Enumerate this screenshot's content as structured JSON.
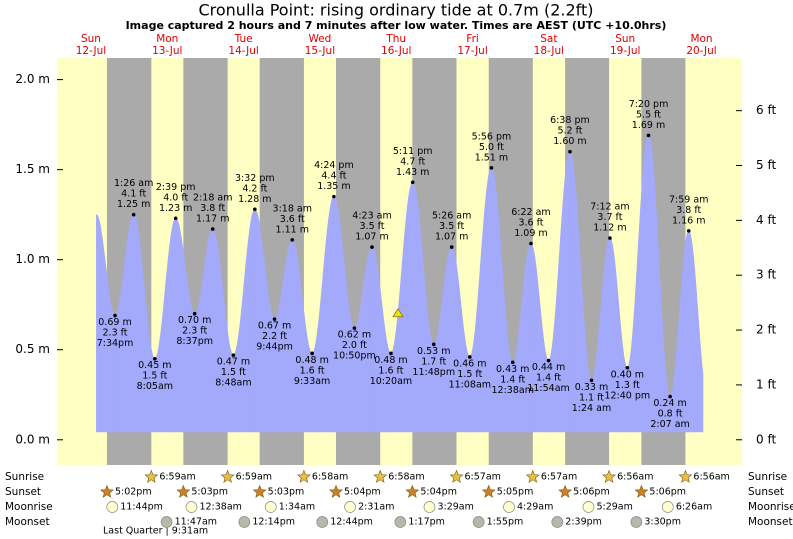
{
  "chart_data": {
    "type": "tide",
    "title": "Cronulla Point: rising  ordinary tide at 0.7m (2.2ft)",
    "subtitle": "Image captured 2 hours and 7 minutes after low water. Times are AEST (UTC +10.0hrs)",
    "current_height_m": 0.7,
    "weekdays": [
      "Sun",
      "Mon",
      "Tue",
      "Wed",
      "Thu",
      "Fri",
      "Sat",
      "Sun",
      "Mon"
    ],
    "categories": [
      "12-Jul",
      "13-Jul",
      "14-Jul",
      "15-Jul",
      "16-Jul",
      "17-Jul",
      "18-Jul",
      "19-Jul",
      "20-Jul"
    ],
    "ylim": [
      -0.14,
      2.12
    ],
    "yticks": [
      {
        "value": 0,
        "label": "0.0 m"
      },
      {
        "value": 0.5,
        "label": "0.5 m"
      },
      {
        "value": 1,
        "label": "1.0 m"
      },
      {
        "value": 1.5,
        "label": "1.5 m"
      },
      {
        "value": 2,
        "label": "2.0 m"
      }
    ],
    "y2lim": [
      -0.46,
      6.96
    ],
    "y2ticks": [
      {
        "value": 0,
        "label": "0 ft"
      },
      {
        "value": 1,
        "label": "1 ft"
      },
      {
        "value": 2,
        "label": "2 ft"
      },
      {
        "value": 3,
        "label": "3 ft"
      },
      {
        "value": 4,
        "label": "4 ft"
      },
      {
        "value": 5,
        "label": "5 ft"
      },
      {
        "value": 6,
        "label": "6 ft"
      }
    ],
    "extremes": {
      "times": [
        "7:34pm",
        "1:26 am",
        "8:05am",
        "2:39 pm",
        "8:37pm",
        "2:18 am",
        "8:48am",
        "3:32 pm",
        "9:44pm",
        "3:18 am",
        "9:33am",
        "4:24 pm",
        "10:50pm",
        "4:23 am",
        "10:20am",
        "5:11 pm",
        "11:48pm",
        "5:26 am",
        "11:08am",
        "5:56 pm",
        "12:38am",
        "6:22 am",
        "11:54am",
        "6:38 pm",
        "1:24 am",
        "7:12 am",
        "12:40 pm",
        "7:20 pm",
        "2:07 am",
        "7:59 am"
      ],
      "values": [
        0.69,
        1.25,
        0.45,
        1.23,
        0.7,
        1.17,
        0.47,
        1.28,
        0.67,
        1.11,
        0.48,
        1.35,
        0.62,
        1.07,
        0.48,
        1.43,
        0.53,
        1.07,
        0.46,
        1.51,
        0.43,
        1.09,
        0.44,
        1.6,
        0.33,
        1.12,
        0.4,
        1.69,
        0.24,
        1.16
      ],
      "value_labels": [
        "0.69 m",
        "1.25 m",
        "0.45 m",
        "1.23 m",
        "0.70 m",
        "1.17 m",
        "0.47 m",
        "1.28 m",
        "0.67 m",
        "1.11 m",
        "0.48 m",
        "1.35 m",
        "0.62 m",
        "1.07 m",
        "0.48 m",
        "1.43 m",
        "0.53 m",
        "1.07 m",
        "0.46 m",
        "1.51 m",
        "0.43 m",
        "1.09 m",
        "0.44 m",
        "1.60 m",
        "0.33 m",
        "1.12 m",
        "0.40 m",
        "1.69 m",
        "0.24 m",
        "1.16 m"
      ],
      "values_ft": [
        2.3,
        4.1,
        1.5,
        4.0,
        2.3,
        3.8,
        1.5,
        4.2,
        2.2,
        3.6,
        1.6,
        4.4,
        2.0,
        3.5,
        1.6,
        4.7,
        1.7,
        3.5,
        1.5,
        5.0,
        1.4,
        3.6,
        1.4,
        5.2,
        1.1,
        3.7,
        1.3,
        5.5,
        0.8,
        3.8
      ],
      "value_labels_ft": [
        "2.3 ft",
        "4.1 ft",
        "1.5 ft",
        "4.0 ft",
        "2.3 ft",
        "3.8 ft",
        "1.5 ft",
        "4.2 ft",
        "2.2 ft",
        "3.6 ft",
        "1.6 ft",
        "4.4 ft",
        "2.0 ft",
        "3.5 ft",
        "1.6 ft",
        "4.7 ft",
        "1.7 ft",
        "3.5 ft",
        "1.5 ft",
        "5.0 ft",
        "1.4 ft",
        "3.6 ft",
        "1.4 ft",
        "5.2 ft",
        "1.1 ft",
        "3.7 ft",
        "1.3 ft",
        "5.5 ft",
        "0.8 ft",
        "3.8 ft"
      ]
    },
    "rows": [
      {
        "name": "Sunrise",
        "times": [
          null,
          "6:59am",
          "6:59am",
          "6:58am",
          "6:58am",
          "6:57am",
          "6:57am",
          "6:56am",
          "6:56am"
        ]
      },
      {
        "name": "Sunset",
        "times": [
          "5:02pm",
          "5:03pm",
          "5:03pm",
          "5:04pm",
          "5:04pm",
          "5:05pm",
          "5:06pm",
          "5:06pm",
          null
        ]
      },
      {
        "name": "Moonrise",
        "times": [
          "11:44pm",
          null,
          "12:38am",
          "1:34am",
          "2:31am",
          "3:29am",
          "4:29am",
          "5:29am",
          "6:26am"
        ]
      },
      {
        "name": "Moonset",
        "times": [
          null,
          "11:47am",
          "12:14pm",
          "12:44pm",
          "1:17pm",
          "1:55pm",
          "2:39pm",
          "3:30pm",
          null
        ]
      }
    ],
    "moon_phase": "Last Quarter | 9:31am",
    "colors": {
      "tide": "#a3a9fb",
      "day": "#ffffc4",
      "night": "#aaaaaa",
      "dates": "#e00000"
    }
  }
}
